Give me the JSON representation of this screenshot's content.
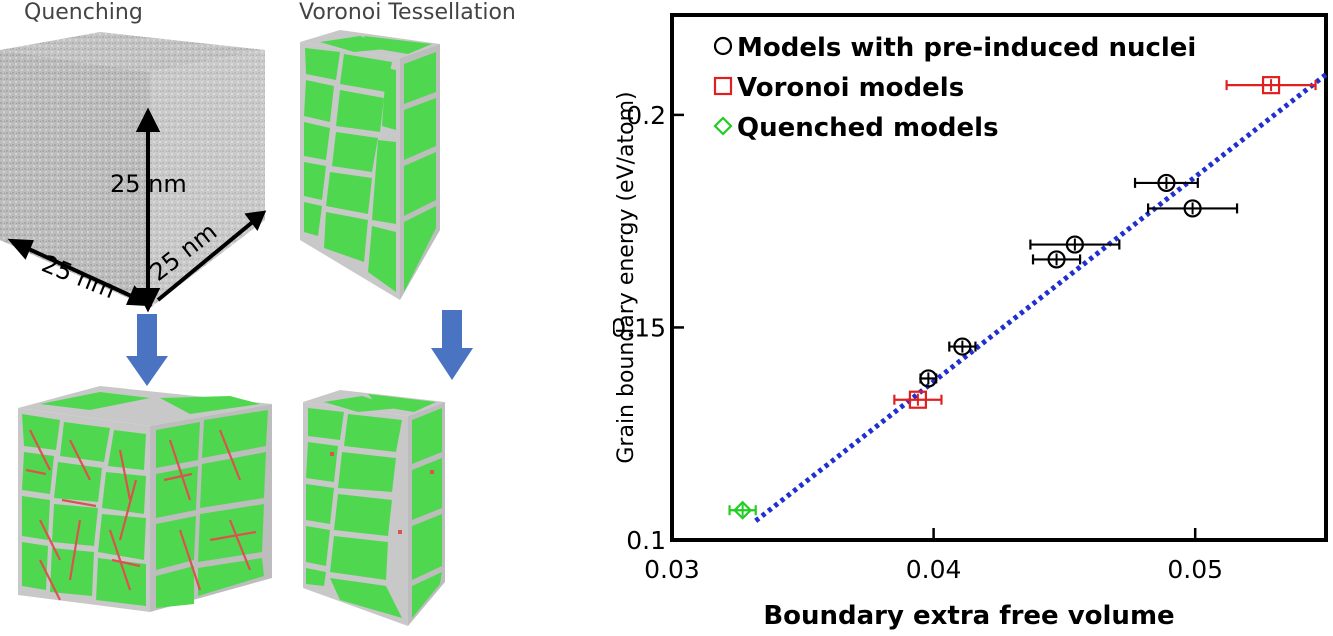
{
  "panels": {
    "quench_label": "Quenching",
    "voronoi_label": "Voronoi Tessellation",
    "dim_vertical": "25 nm",
    "dim_left": "25 nm",
    "dim_right": "25 nm"
  },
  "colors": {
    "grain": "#4fd84f",
    "boundary": "#c9c9c9",
    "twin": "#d9534f",
    "amorphous": "#c4c4c4",
    "arrow": "#4a73c2"
  },
  "chart_data": {
    "type": "scatter",
    "xlabel": "Boundary extra free volume",
    "ylabel": "Grain boundary energy (eV/atom)",
    "xlim": [
      0.03,
      0.055
    ],
    "ylim": [
      0.1,
      0.2235
    ],
    "xticks": [
      "0.03",
      "0.04",
      "0.05"
    ],
    "yticks": [
      "0.1",
      "0.15",
      "0.2"
    ],
    "legend_position": "top-left",
    "series": [
      {
        "name": "Models with pre-induced nuclei",
        "marker": "circle",
        "color": "#000000",
        "points": [
          {
            "x": 0.0398,
            "y": 0.138,
            "xerr": 0.0003
          },
          {
            "x": 0.0411,
            "y": 0.1455,
            "xerr": 0.0005
          },
          {
            "x": 0.0447,
            "y": 0.166,
            "xerr": 0.0009
          },
          {
            "x": 0.0454,
            "y": 0.1695,
            "xerr": 0.0017
          },
          {
            "x": 0.0489,
            "y": 0.184,
            "xerr": 0.0012
          },
          {
            "x": 0.0499,
            "y": 0.178,
            "xerr": 0.0017
          }
        ]
      },
      {
        "name": "Voronoi models",
        "marker": "square",
        "color": "#e02020",
        "points": [
          {
            "x": 0.0394,
            "y": 0.133,
            "xerr": 0.0009
          },
          {
            "x": 0.0529,
            "y": 0.207,
            "xerr": 0.0017
          }
        ]
      },
      {
        "name": "Quenched  models",
        "marker": "diamond",
        "color": "#22cc22",
        "points": [
          {
            "x": 0.0327,
            "y": 0.107,
            "xerr": 0.0005
          }
        ]
      }
    ],
    "fit_line": {
      "style": "dotted",
      "color": "#1f2fd1",
      "x": [
        0.0332,
        0.055
      ],
      "y": [
        0.1045,
        0.2095
      ]
    }
  }
}
